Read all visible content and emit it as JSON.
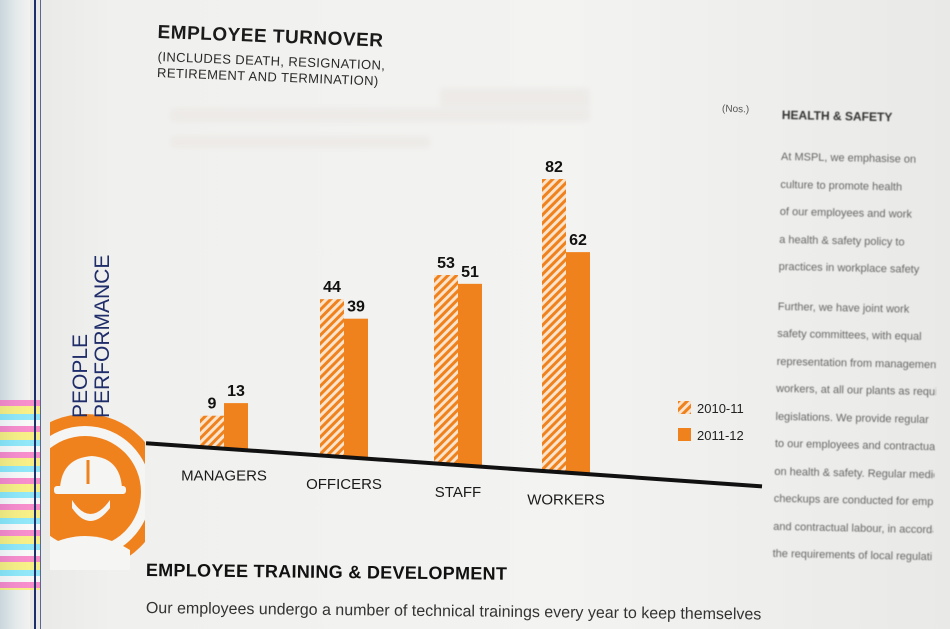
{
  "chart_data": {
    "type": "bar",
    "title": "EMPLOYEE TURNOVER",
    "subtitle_lines": [
      "(INCLUDES DEATH, RESIGNATION,",
      "RETIREMENT AND TERMINATION)"
    ],
    "unit": "(Nos.)",
    "categories": [
      "MANAGERS",
      "OFFICERS",
      "STAFF",
      "WORKERS"
    ],
    "series": [
      {
        "name": "2010-11",
        "values": [
          9,
          44,
          53,
          82
        ],
        "color": "#f0821e",
        "pattern": "hatched"
      },
      {
        "name": "2011-12",
        "values": [
          13,
          39,
          51,
          62
        ],
        "color": "#f0821e",
        "pattern": "solid"
      }
    ],
    "ylim": [
      0,
      90
    ],
    "grid": false,
    "legend_position": "right",
    "xlabel": "",
    "ylabel": ""
  },
  "side_label": {
    "line1": "PEOPLE",
    "line2": "PERFORMANCE"
  },
  "section": {
    "title": "EMPLOYEE TRAINING & DEVELOPMENT",
    "body": "Our employees undergo a number of technical trainings every year to keep themselves"
  },
  "right_column": {
    "heading": "HEALTH & SAFETY",
    "para1": [
      "At MSPL, we emphasise on",
      "culture to promote health",
      "of our employees and work",
      "a health & safety policy to",
      "practices in workplace safety"
    ],
    "para2": [
      "Further, we have joint work",
      "safety committees, with equal",
      "representation from management",
      "workers, at all our plants as required",
      "legislations. We provide regular",
      "to our employees and contractual",
      "on health & safety. Regular medical",
      "checkups are conducted for employees",
      "and contractual labour, in accordance",
      "the requirements of local regulations"
    ]
  },
  "colors": {
    "accent": "#f0821e",
    "navy": "#1f2d6a",
    "axis": "#111111"
  }
}
